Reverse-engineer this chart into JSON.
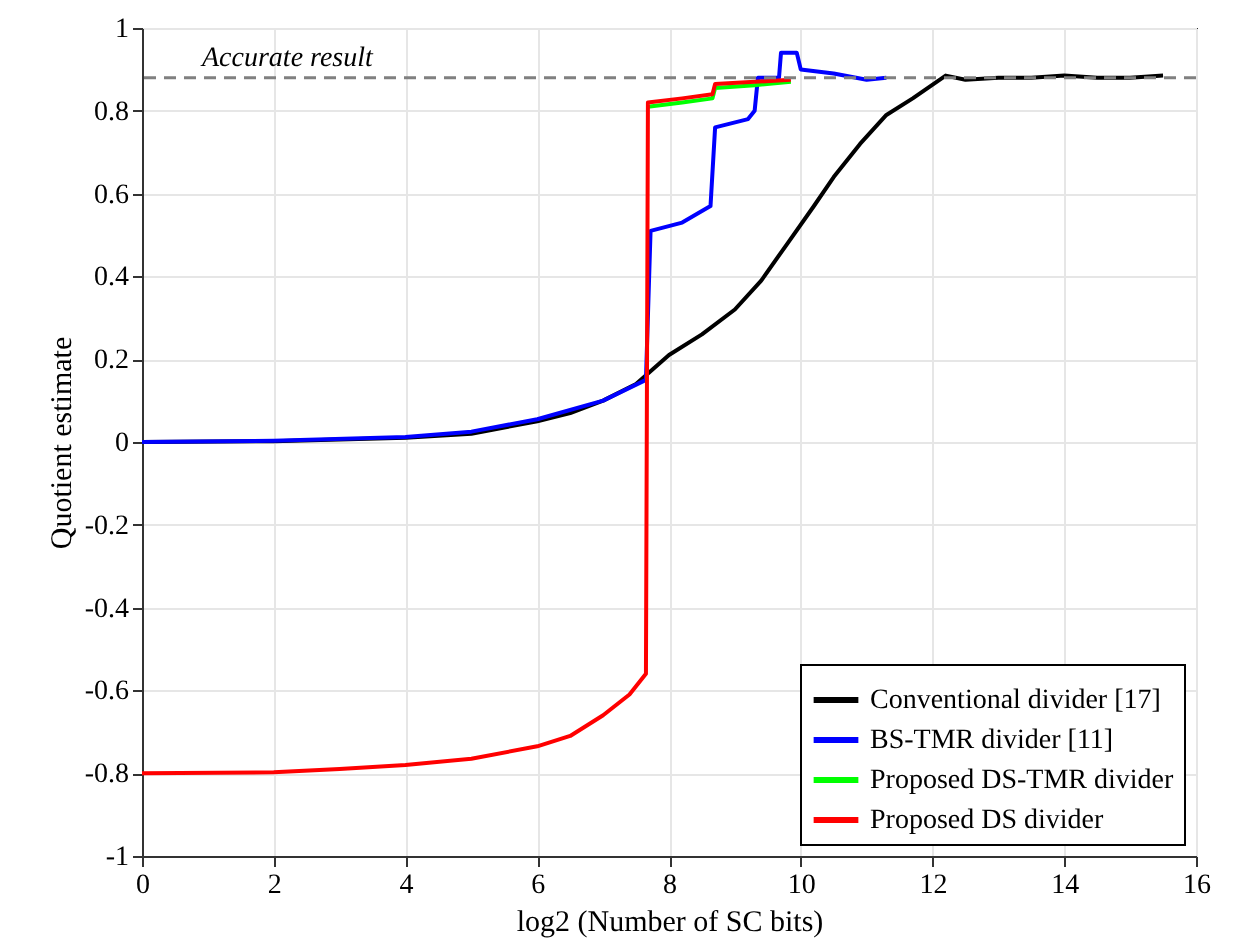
{
  "chart_data": {
    "type": "line",
    "xlabel": "log2 (Number of SC bits)",
    "ylabel": "Quotient estimate",
    "xlim": [
      0,
      16
    ],
    "xticks": [
      0,
      2,
      4,
      6,
      8,
      10,
      12,
      14,
      16
    ],
    "ylim": [
      -1,
      1
    ],
    "yticks": [
      -1,
      -0.8,
      -0.6,
      -0.4,
      -0.2,
      0,
      0.2,
      0.4,
      0.6,
      0.8,
      1
    ],
    "grid": true,
    "legend": "bottom right",
    "line_style": "solid",
    "marker": "none",
    "ref_lines": [
      {
        "axis": "y",
        "value": 0.88,
        "label": "Accurate result",
        "color": "#808080",
        "line_style": "dashed"
      }
    ],
    "series": [
      {
        "name": "Conventional divider [17]",
        "color": "#000000",
        "x": [
          0,
          2,
          4,
          5,
          6,
          6.5,
          7,
          7.5,
          8,
          8.5,
          9,
          9.4,
          9.8,
          10.2,
          10.5,
          10.9,
          11.3,
          11.7,
          12.2,
          12.5,
          13,
          13.5,
          14,
          14.5,
          15,
          15.5
        ],
        "values": [
          0,
          0.002,
          0.01,
          0.02,
          0.05,
          0.07,
          0.1,
          0.14,
          0.21,
          0.26,
          0.32,
          0.39,
          0.48,
          0.57,
          0.64,
          0.72,
          0.79,
          0.83,
          0.885,
          0.875,
          0.88,
          0.88,
          0.885,
          0.88,
          0.88,
          0.885
        ]
      },
      {
        "name": "BS-TMR divider [11]",
        "color": "#0000ff",
        "x": [
          0,
          2,
          4,
          5,
          6,
          7,
          7.65,
          7.72,
          8.2,
          8.63,
          8.7,
          9.2,
          9.3,
          9.35,
          9.67,
          9.7,
          9.94,
          10.0,
          10.5,
          11.0,
          11.3
        ],
        "values": [
          0,
          0.003,
          0.012,
          0.025,
          0.055,
          0.1,
          0.15,
          0.51,
          0.53,
          0.57,
          0.76,
          0.78,
          0.8,
          0.88,
          0.88,
          0.94,
          0.94,
          0.9,
          0.89,
          0.875,
          0.88
        ]
      },
      {
        "name": "Proposed DS-TMR divider",
        "color": "#00ff00",
        "x": [
          7.68,
          8.2,
          8.66,
          8.7,
          9.3,
          9.85
        ],
        "values": [
          0.81,
          0.82,
          0.83,
          0.855,
          0.862,
          0.87
        ]
      },
      {
        "name": "Proposed DS divider",
        "color": "#ff0000",
        "x": [
          0,
          2,
          3,
          4,
          5,
          6,
          6.5,
          7,
          7.4,
          7.65,
          7.68,
          8.2,
          8.66,
          8.7,
          9.3,
          9.85
        ],
        "values": [
          -0.8,
          -0.798,
          -0.79,
          -0.78,
          -0.765,
          -0.735,
          -0.71,
          -0.66,
          -0.61,
          -0.56,
          0.82,
          0.83,
          0.84,
          0.865,
          0.87,
          0.875
        ]
      }
    ]
  }
}
